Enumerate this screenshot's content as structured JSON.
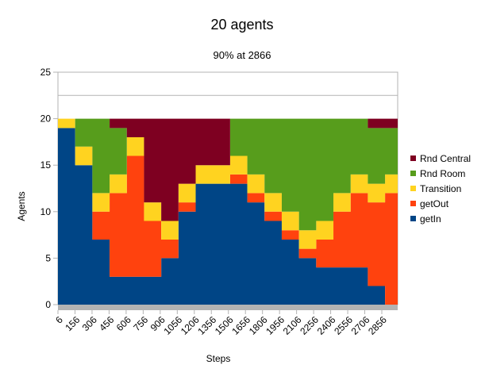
{
  "chart_data": {
    "type": "area",
    "stacked": true,
    "title": "20 agents",
    "subtitle": "90% at 2866",
    "xlabel": "Steps",
    "ylabel": "Agents",
    "ylim": [
      0,
      25
    ],
    "y_ticks": [
      "0",
      "5",
      "10",
      "15",
      "20",
      "25"
    ],
    "x_tick_labels": [
      "6",
      "156",
      "306",
      "456",
      "606",
      "756",
      "906",
      "1056",
      "1206",
      "1356",
      "1506",
      "1656",
      "1806",
      "1956",
      "2106",
      "2256",
      "2406",
      "2556",
      "2706",
      "2856"
    ],
    "reference_line": 22.5,
    "legend_position": "right",
    "x": [
      6,
      156,
      306,
      456,
      606,
      756,
      906,
      1056,
      1206,
      1356,
      1506,
      1656,
      1806,
      1956,
      2106,
      2256,
      2406,
      2556,
      2706,
      2856,
      2966
    ],
    "series": [
      {
        "name": "getIn",
        "color": "#004586",
        "values": [
          19,
          15,
          7,
          3,
          3,
          3,
          5,
          10,
          13,
          13,
          13,
          11,
          9,
          7,
          5,
          4,
          4,
          4,
          2,
          0,
          0
        ]
      },
      {
        "name": "getOut",
        "color": "#ff420e",
        "values": [
          0,
          0,
          3,
          9,
          13,
          6,
          2,
          1,
          0,
          0,
          1,
          1,
          1,
          1,
          1,
          3,
          6,
          8,
          9,
          12,
          12
        ]
      },
      {
        "name": "Transition",
        "color": "#ffd320",
        "values": [
          1,
          2,
          2,
          2,
          2,
          2,
          2,
          2,
          2,
          2,
          2,
          2,
          2,
          2,
          2,
          2,
          2,
          2,
          2,
          2,
          2
        ]
      },
      {
        "name": "Rnd Room",
        "color": "#579d1c",
        "values": [
          0,
          3,
          8,
          5,
          0,
          0,
          0,
          0,
          0,
          0,
          4,
          6,
          8,
          10,
          12,
          11,
          8,
          6,
          6,
          5,
          6
        ]
      },
      {
        "name": "Rnd Central",
        "color": "#7e0021",
        "values": [
          0,
          0,
          0,
          1,
          2,
          9,
          11,
          7,
          5,
          5,
          0,
          0,
          0,
          0,
          0,
          0,
          0,
          0,
          1,
          1,
          0
        ]
      }
    ],
    "legend_order": [
      "Rnd Central",
      "Rnd Room",
      "Transition",
      "getOut",
      "getIn"
    ],
    "axis_color": "#b3b3b3",
    "grid_color": "#b3b3b3"
  }
}
